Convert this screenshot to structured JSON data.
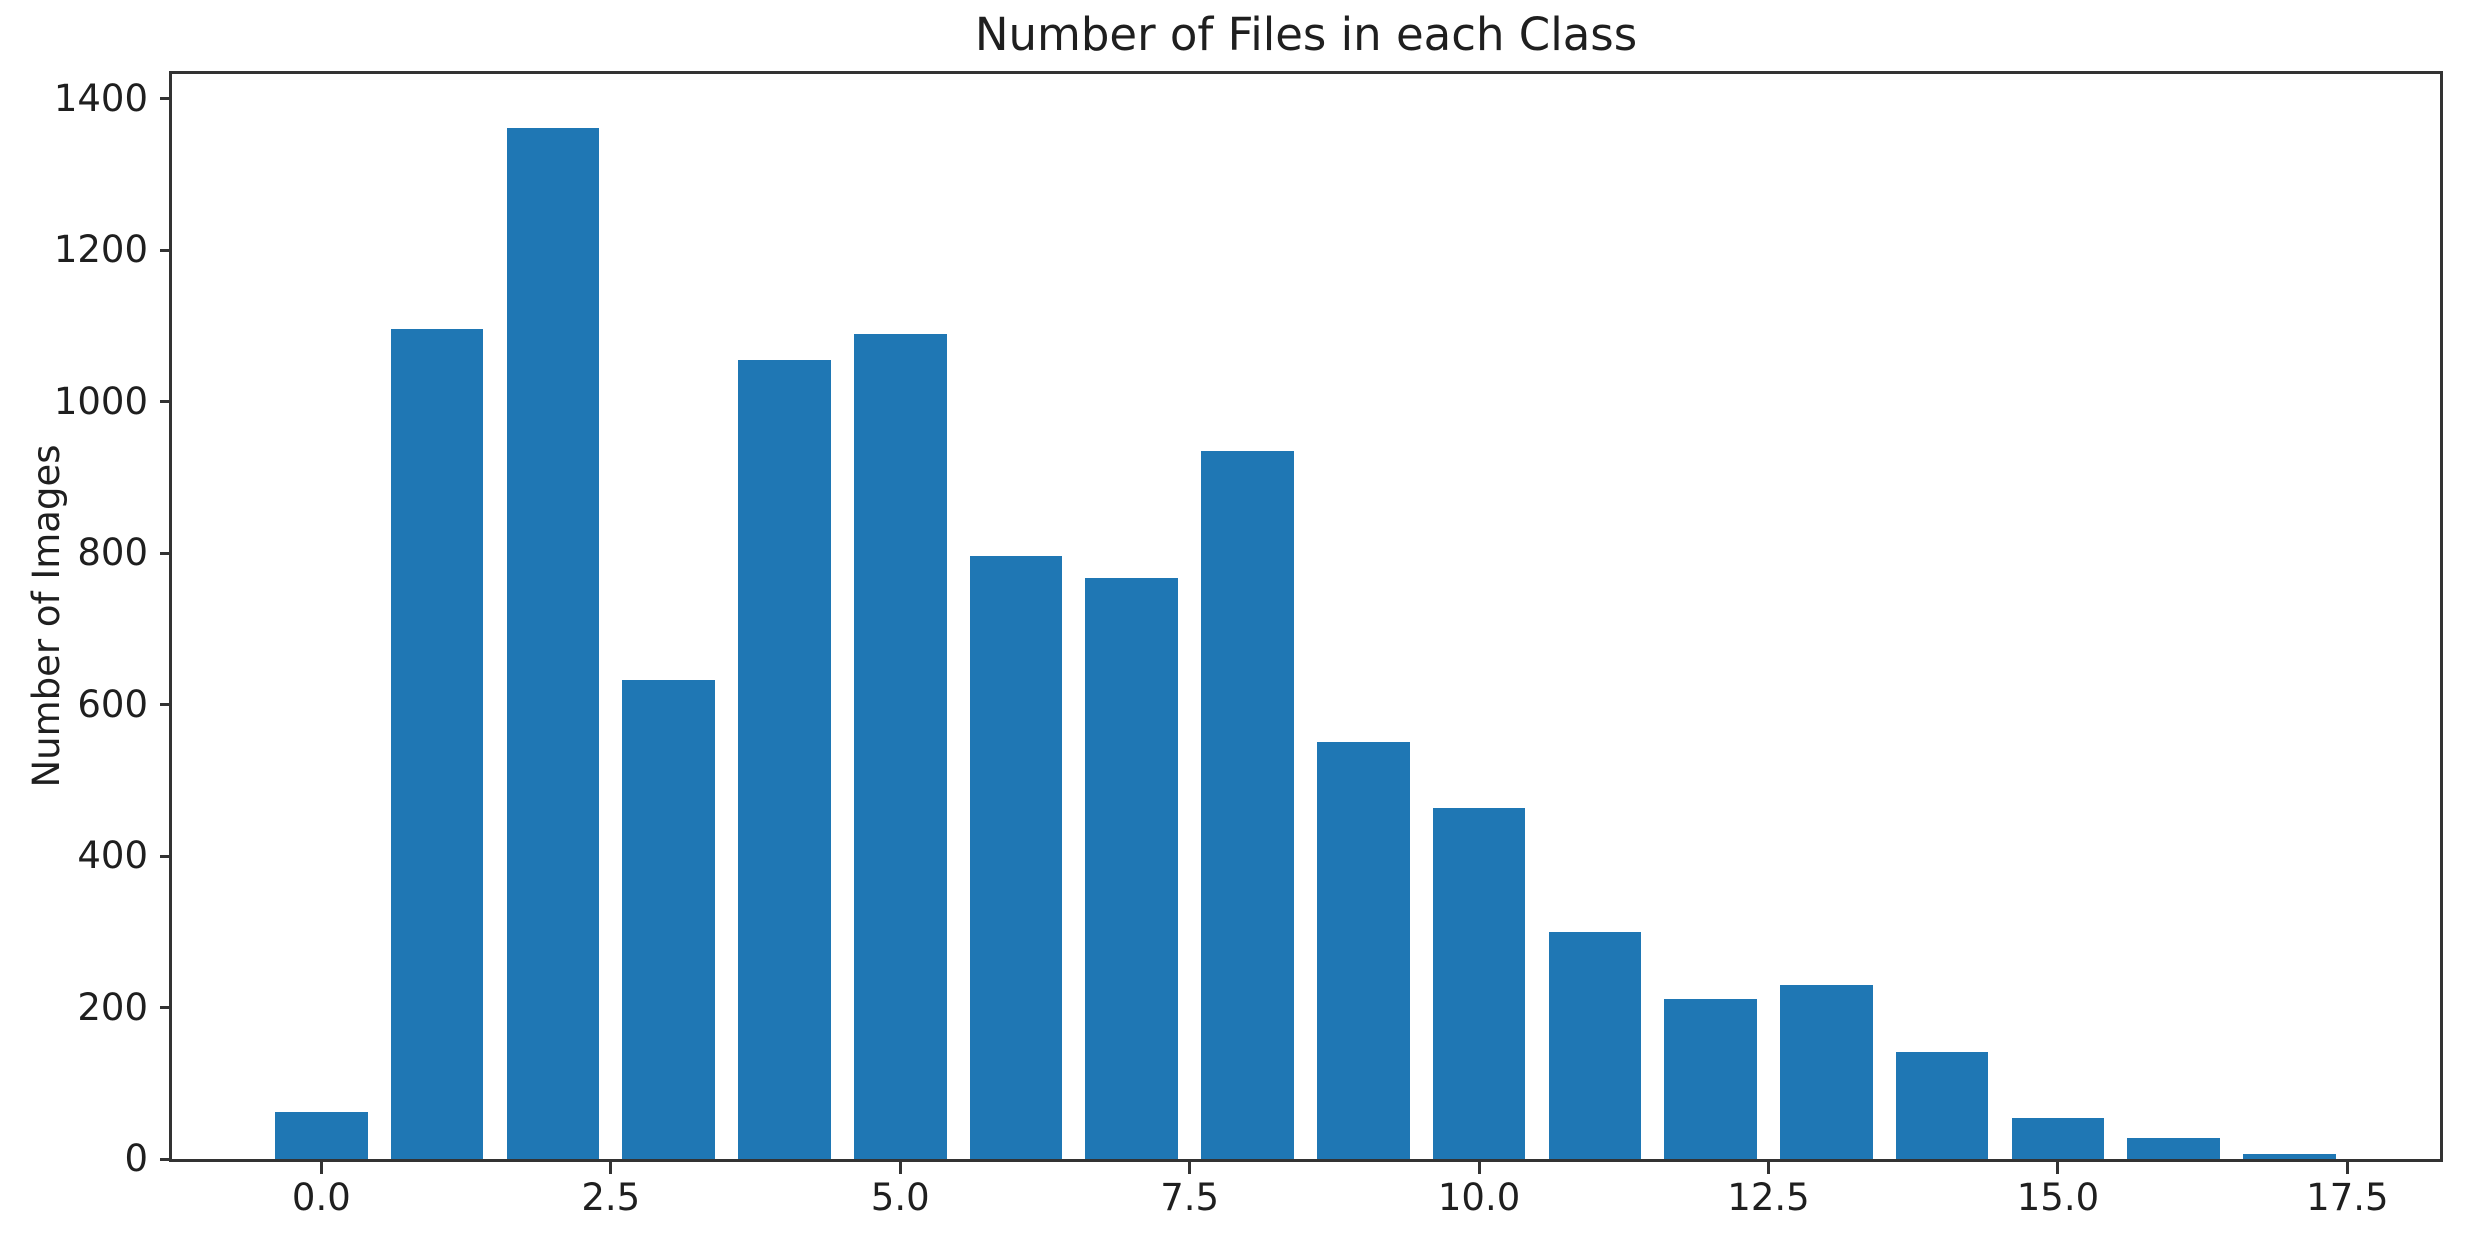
{
  "chart_data": {
    "type": "bar",
    "title": "Number of Files in each Class",
    "xlabel": "",
    "ylabel": "Number of Images",
    "categories": [
      0,
      1,
      2,
      3,
      4,
      5,
      6,
      7,
      8,
      9,
      10,
      11,
      12,
      13,
      14,
      15,
      16,
      17
    ],
    "values": [
      62,
      1096,
      1362,
      633,
      1055,
      1090,
      797,
      768,
      935,
      551,
      464,
      300,
      211,
      230,
      141,
      54,
      28,
      7
    ],
    "bar_width": 0.8,
    "bar_color": "#1f77b4",
    "axis_color": "#333333",
    "text_color": "#1f1f1f",
    "background_color": "#ffffff",
    "xlim": [
      -1.29,
      18.3
    ],
    "ylim": [
      0,
      1433
    ],
    "x_tick_positions": [
      0,
      2.5,
      5,
      7.5,
      10,
      12.5,
      15,
      17.5
    ],
    "x_tick_labels": [
      "0.0",
      "2.5",
      "5.0",
      "7.5",
      "10.0",
      "12.5",
      "15.0",
      "17.5"
    ],
    "y_tick_positions": [
      0,
      200,
      400,
      600,
      800,
      1000,
      1200,
      1400
    ],
    "y_tick_labels": [
      "0",
      "200",
      "400",
      "600",
      "800",
      "1000",
      "1200",
      "1400"
    ],
    "grid": false,
    "legend": null
  }
}
